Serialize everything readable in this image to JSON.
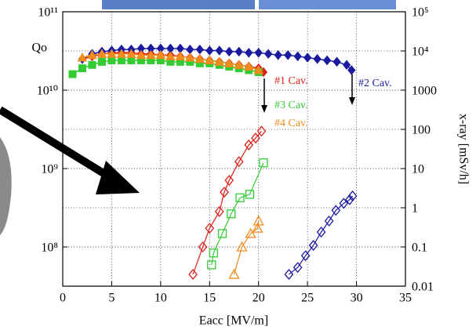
{
  "chart_data": {
    "type": "scatter",
    "xlabel": "Eacc [MV/m]",
    "ylabel": "Qo",
    "y2label": "x-ray [mSv/h]",
    "xlim": [
      0,
      35
    ],
    "xticks": [
      0,
      5,
      10,
      15,
      20,
      25,
      30,
      35
    ],
    "ylim": [
      31600000,
      100000000000
    ],
    "log_y": true,
    "yticks": [
      {
        "value": 100000000000,
        "label": "10¹¹"
      },
      {
        "value": 10000000000,
        "label": "10¹⁰"
      },
      {
        "value": 1000000000,
        "label": "10⁹"
      },
      {
        "value": 100000000,
        "label": "10⁸"
      }
    ],
    "y2lim": [
      0.01,
      100000
    ],
    "log_y2": true,
    "y2ticks": [
      {
        "value": 100000,
        "label": "10⁵"
      },
      {
        "value": 10000,
        "label": "10⁴"
      },
      1000,
      100,
      10,
      1,
      0.1,
      0.01
    ],
    "grid": true,
    "series": [
      {
        "name": "#1 Cav.",
        "color": "#e0201b",
        "marker": "diamond",
        "filled": true,
        "x": [
          2,
          3,
          4,
          5,
          6,
          7,
          8,
          9,
          10,
          11,
          12,
          13,
          14,
          15,
          16,
          17,
          18,
          19,
          20,
          20.5
        ],
        "values": [
          25000000000,
          27000000000,
          29000000000,
          30000000000,
          30000000000,
          30000000000,
          29000000000,
          29000000000,
          28000000000,
          28000000000,
          27000000000,
          26000000000,
          25000000000,
          24000000000,
          23000000000,
          22000000000,
          21000000000,
          20000000000,
          19000000000,
          17000000000
        ]
      },
      {
        "name": "#2 Cav.",
        "color": "#1a1aa0",
        "marker": "diamond",
        "filled": true,
        "x": [
          2,
          3,
          4,
          5,
          6,
          7,
          8,
          9,
          10,
          11,
          12,
          13,
          14,
          15,
          16,
          17,
          18,
          19,
          20,
          21,
          22,
          23,
          24,
          25,
          26,
          27,
          28,
          29,
          29.5
        ],
        "values": [
          25000000000,
          29000000000,
          31000000000,
          32000000000,
          33000000000,
          33000000000,
          34000000000,
          34000000000,
          34000000000,
          34000000000,
          34000000000,
          33000000000,
          33000000000,
          32000000000,
          32000000000,
          31000000000,
          31000000000,
          30000000000,
          30000000000,
          29000000000,
          28000000000,
          28000000000,
          27000000000,
          26000000000,
          25000000000,
          24000000000,
          23000000000,
          21000000000,
          18000000000
        ]
      },
      {
        "name": "#3 Cav.",
        "color": "#33cc33",
        "marker": "square",
        "filled": true,
        "x": [
          1,
          2,
          3,
          4,
          5,
          6,
          7,
          8,
          9,
          10,
          11,
          12,
          13,
          14,
          15,
          16,
          17,
          18,
          19,
          20
        ],
        "values": [
          16000000000,
          19000000000,
          21000000000,
          23000000000,
          24000000000,
          24000000000,
          24000000000,
          24000000000,
          24000000000,
          24000000000,
          23000000000,
          23000000000,
          23000000000,
          22000000000,
          22000000000,
          21000000000,
          20000000000,
          19000000000,
          18000000000,
          17000000000
        ]
      },
      {
        "name": "#4 Cav.",
        "color": "#f08c1e",
        "marker": "triangle",
        "filled": true,
        "x": [
          2,
          3,
          4,
          5,
          6,
          7,
          8,
          9,
          10,
          11,
          12,
          13,
          14,
          15,
          16,
          17,
          18,
          19,
          20
        ],
        "values": [
          26000000000,
          28000000000,
          29000000000,
          29000000000,
          29000000000,
          29000000000,
          28000000000,
          28000000000,
          28000000000,
          27000000000,
          27000000000,
          26000000000,
          25000000000,
          24000000000,
          23000000000,
          22000000000,
          21000000000,
          20000000000,
          18000000000
        ]
      },
      {
        "color": "#e0201b",
        "marker": "diamond",
        "filled": false,
        "axis": "y2",
        "x": [
          13.3,
          14.3,
          15,
          16,
          16.5,
          17,
          18,
          19,
          19.7,
          20.3
        ],
        "values": [
          0.02,
          0.1,
          0.3,
          0.8,
          2.5,
          5,
          15,
          40,
          60,
          90
        ]
      },
      {
        "color": "#1a1aa0",
        "marker": "diamond",
        "filled": false,
        "axis": "y2",
        "x": [
          23.1,
          24,
          24.8,
          25.6,
          26.4,
          27.2,
          27.9,
          28.7,
          29.3,
          29.6
        ],
        "values": [
          0.02,
          0.03,
          0.06,
          0.11,
          0.24,
          0.46,
          0.86,
          1.3,
          1.6,
          2
        ]
      },
      {
        "color": "#33cc33",
        "marker": "square",
        "filled": false,
        "axis": "y2",
        "x": [
          15.2,
          15.4,
          16.3,
          17.2,
          18.1,
          19.1,
          20.5
        ],
        "values": [
          0.035,
          0.07,
          0.22,
          0.7,
          1.8,
          2.2,
          14
        ]
      },
      {
        "color": "#f08c1e",
        "marker": "triangle",
        "filled": false,
        "axis": "y2",
        "x": [
          17.5,
          18.3,
          19.2,
          19.9,
          20
        ],
        "values": [
          0.02,
          0.1,
          0.22,
          0.3,
          0.46
        ]
      }
    ]
  }
}
